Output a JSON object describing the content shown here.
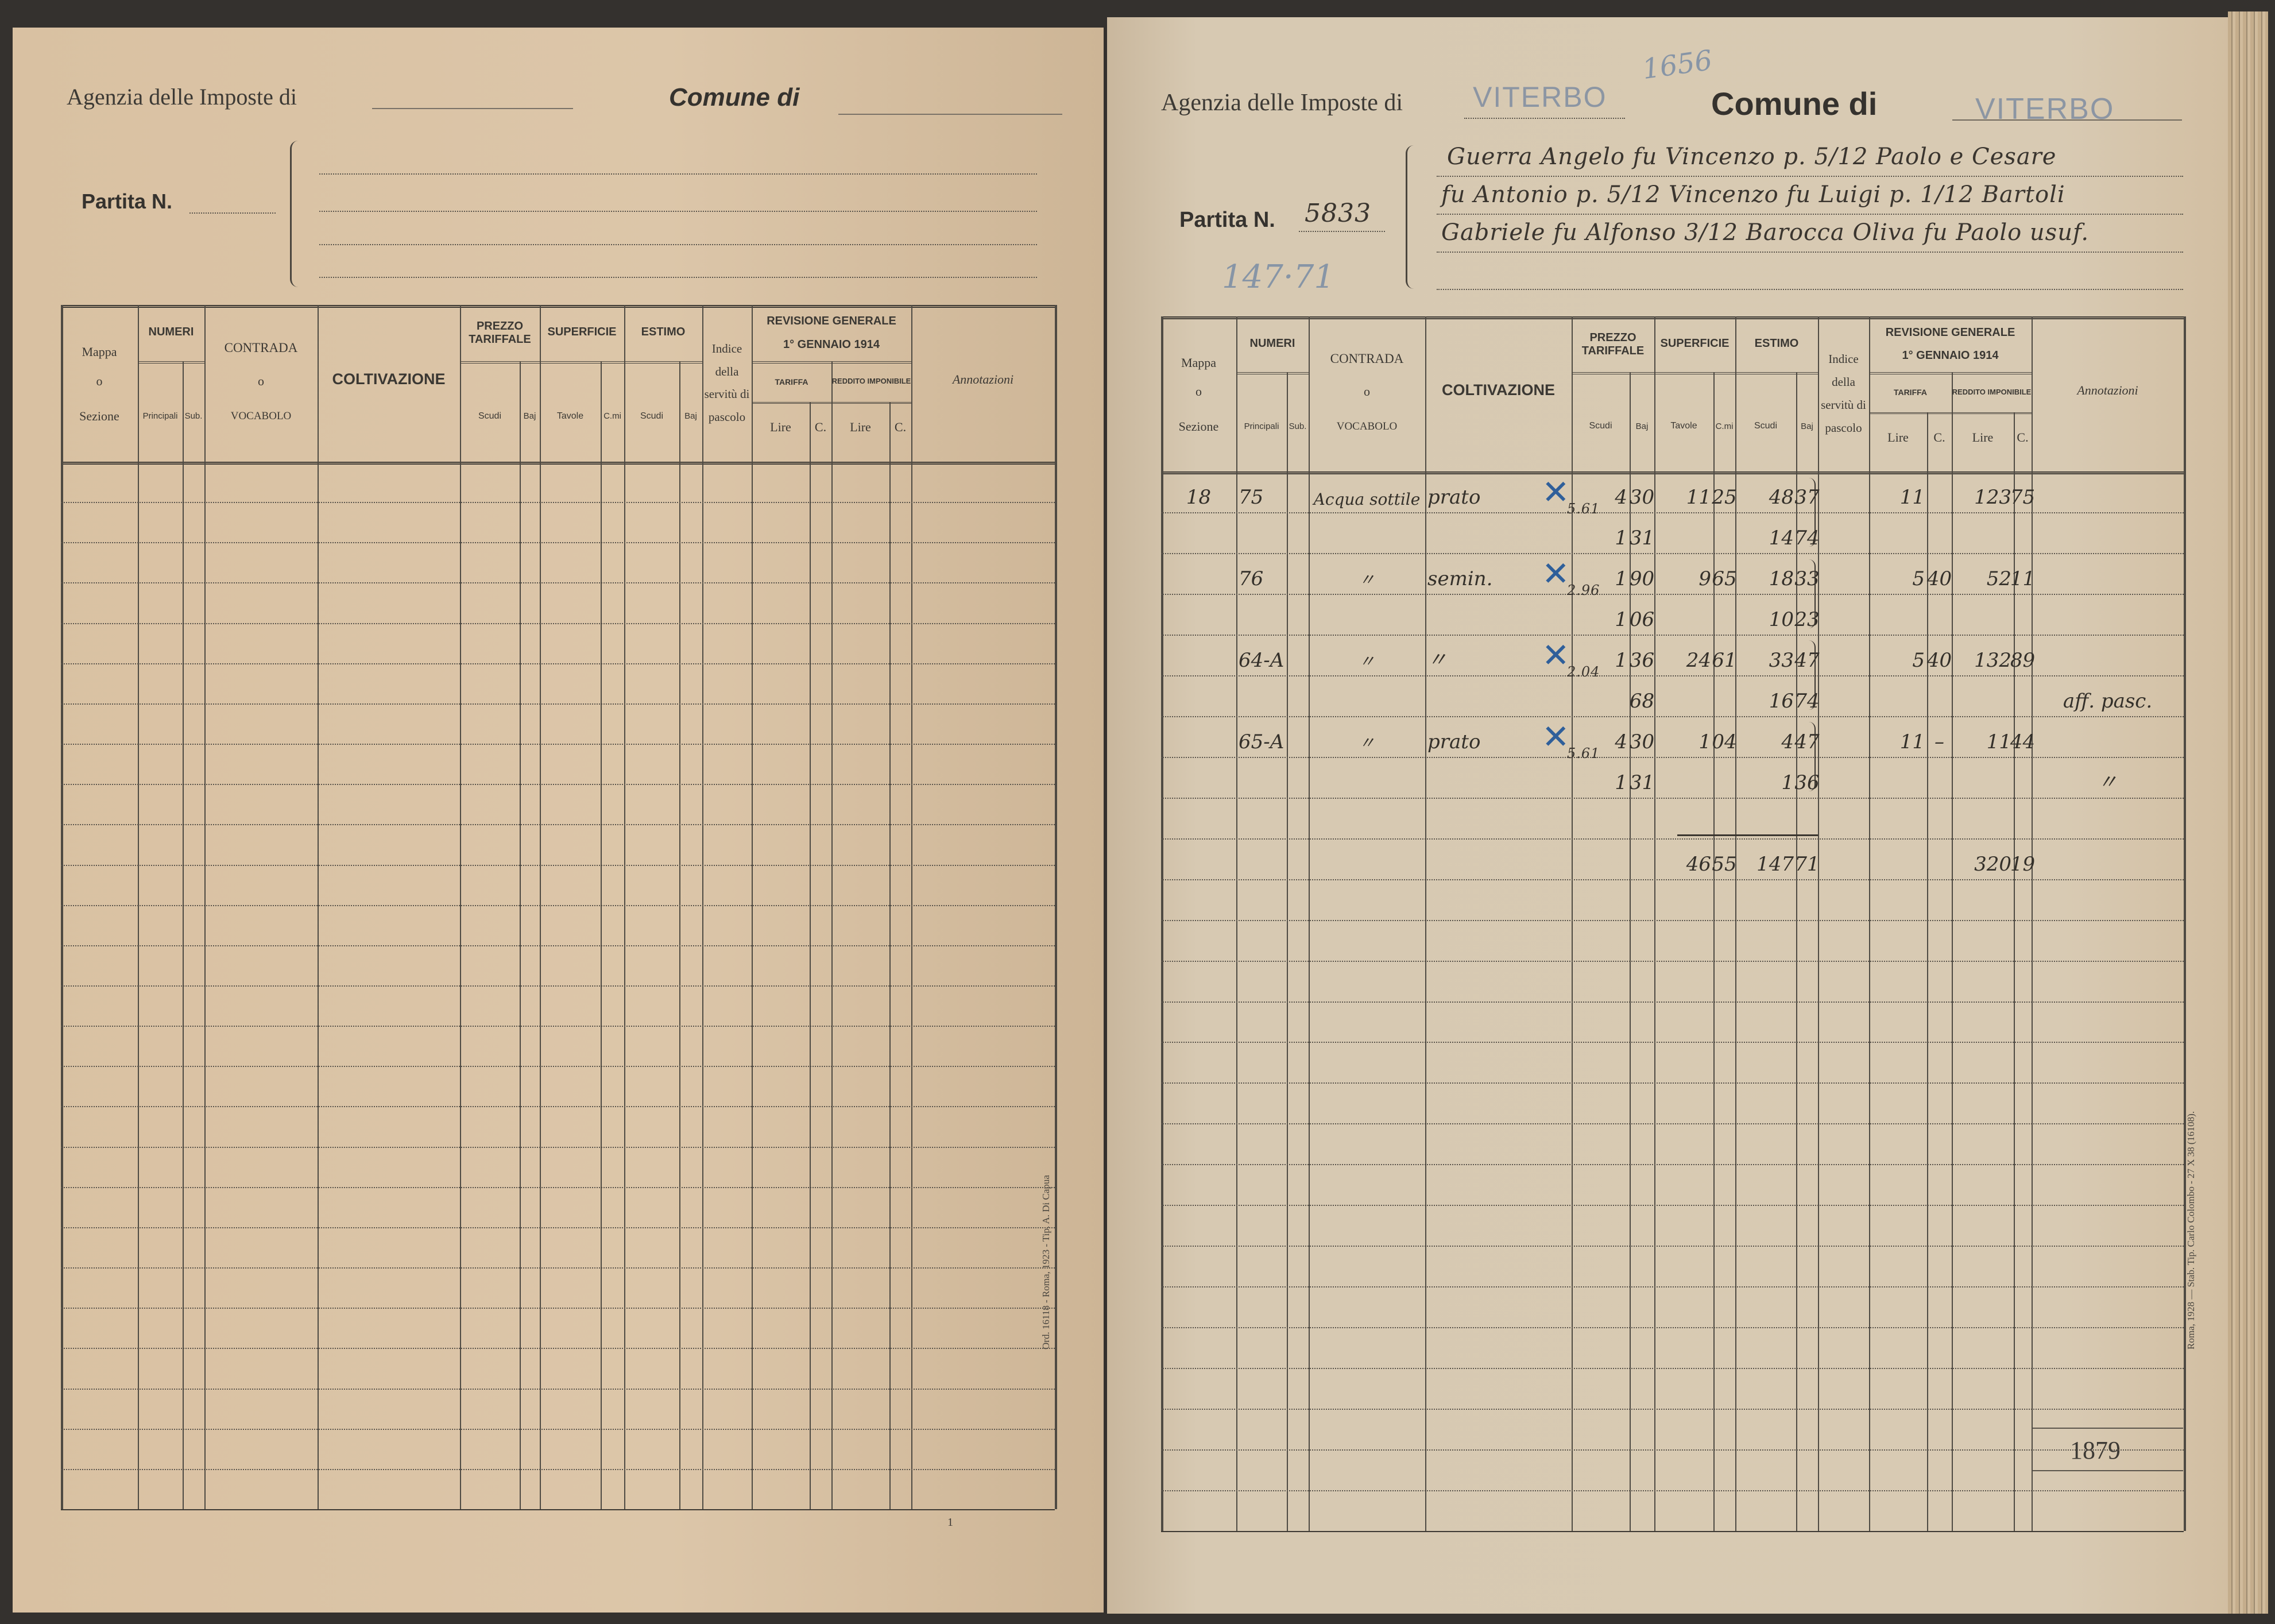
{
  "left": {
    "agenzia_label": "Agenzia delle Imposte di",
    "comune_label": "Comune di",
    "partita_label": "Partita N.",
    "imprint": "Ord. 16118 - Roma, 1923 - Tip. A. Di Capua",
    "page_mark": "1"
  },
  "right": {
    "agenzia_label": "Agenzia delle Imposte di",
    "agenzia_value": "VITERBO",
    "comune_label": "Comune di",
    "comune_value": "VITERBO",
    "archive_number": "1656",
    "partita_label": "Partita N.",
    "partita_value": "5833",
    "pencil_note": "147·71",
    "owners": [
      "Guerra Angelo fu Vincenzo p. 5/12 Paolo e Cesare",
      "fu Antonio p. 5/12 Vincenzo fu Luigi p. 1/12 Bartoli",
      "Gabriele fu Alfonso 3/12 Barocca Oliva fu Paolo usuf."
    ],
    "entries": [
      {
        "mappa": "18",
        "principali": "75",
        "contrada": "Acqua sottile",
        "coltivazione": "prato",
        "mark": "✕",
        "prezzo_scudi": "4",
        "prezzo_baj": "30",
        "prezzo_scudi_2": "1",
        "prezzo_baj_2": "31",
        "prezzo_side": "5.61",
        "sup_tavole": "11",
        "sup_cmi": "25",
        "estimo_scudi": "48",
        "estimo_baj": "37",
        "estimo_scudi_2": "14",
        "estimo_baj_2": "74",
        "tariffa_lire": "11",
        "tariffa_c": "",
        "reddito_lire": "123",
        "reddito_c": "75",
        "annotazioni": ""
      },
      {
        "mappa": "",
        "principali": "76",
        "contrada": "〃",
        "coltivazione": "semin.",
        "mark": "✕",
        "prezzo_scudi": "1",
        "prezzo_baj": "90",
        "prezzo_scudi_2": "1",
        "prezzo_baj_2": "06",
        "prezzo_side": "2.96",
        "sup_tavole": "9",
        "sup_cmi": "65",
        "estimo_scudi": "18",
        "estimo_baj": "33",
        "estimo_scudi_2": "10",
        "estimo_baj_2": "23",
        "tariffa_lire": "5",
        "tariffa_c": "40",
        "reddito_lire": "52",
        "reddito_c": "11",
        "annotazioni": ""
      },
      {
        "mappa": "",
        "principali": "64-A",
        "contrada": "〃",
        "coltivazione": "〃",
        "mark": "✕",
        "prezzo_scudi": "1",
        "prezzo_baj": "36",
        "prezzo_scudi_2": "",
        "prezzo_baj_2": "68",
        "prezzo_side": "2.04",
        "sup_tavole": "24",
        "sup_cmi": "61",
        "estimo_scudi": "33",
        "estimo_baj": "47",
        "estimo_scudi_2": "16",
        "estimo_baj_2": "74",
        "tariffa_lire": "5",
        "tariffa_c": "40",
        "reddito_lire": "132",
        "reddito_c": "89",
        "annotazioni": "aff. pasc."
      },
      {
        "mappa": "",
        "principali": "65-A",
        "contrada": "〃",
        "coltivazione": "prato",
        "mark": "✕",
        "prezzo_scudi": "4",
        "prezzo_baj": "30",
        "prezzo_scudi_2": "1",
        "prezzo_baj_2": "31",
        "prezzo_side": "5.61",
        "sup_tavole": "1",
        "sup_cmi": "04",
        "estimo_scudi": "4",
        "estimo_baj": "47",
        "estimo_scudi_2": "1",
        "estimo_baj_2": "36",
        "tariffa_lire": "11",
        "tariffa_c": "–",
        "reddito_lire": "11",
        "reddito_c": "44",
        "annotazioni": "〃"
      }
    ],
    "totals": {
      "sup_tavole": "46",
      "sup_cmi": "55",
      "estimo_scudi": "147",
      "estimo_baj": "71",
      "reddito_lire": "320",
      "reddito_c": "19"
    },
    "page_number": "1879",
    "imprint": "Roma, 1928 — Stab. Tip. Carlo Colombo - 27 X 38 (16108)."
  },
  "table_header": {
    "mappa": "Mappa",
    "o": "o",
    "sezione": "Sezione",
    "numeri": "NUMERI",
    "principali": "Principali",
    "sub": "Sub.",
    "contrada": "CONTRADA",
    "vocabolo": "VOCABOLO",
    "coltivazione": "COLTIVAZIONE",
    "prezzo_tariffale": "PREZZO TARIFFALE",
    "scudi": "Scudi",
    "baj": "Baj",
    "superficie": "SUPERFICIE",
    "tavole": "Tavole",
    "cmi": "C.mi",
    "estimo": "ESTIMO",
    "indice": "Indice della servitù di pascolo",
    "revisione": "REVISIONE GENERALE",
    "revisione_date": "1° GENNAIO 1914",
    "tariffa": "TARIFFA",
    "reddito": "REDDITO IMPONIBILE",
    "lire": "Lire",
    "c": "C.",
    "annotazioni": "Annotazioni"
  },
  "colors": {
    "paper": "#d8c9b2",
    "ink": "#3a352f",
    "blue_mark": "#2f5f9a",
    "stamp": "#7f8da1"
  }
}
